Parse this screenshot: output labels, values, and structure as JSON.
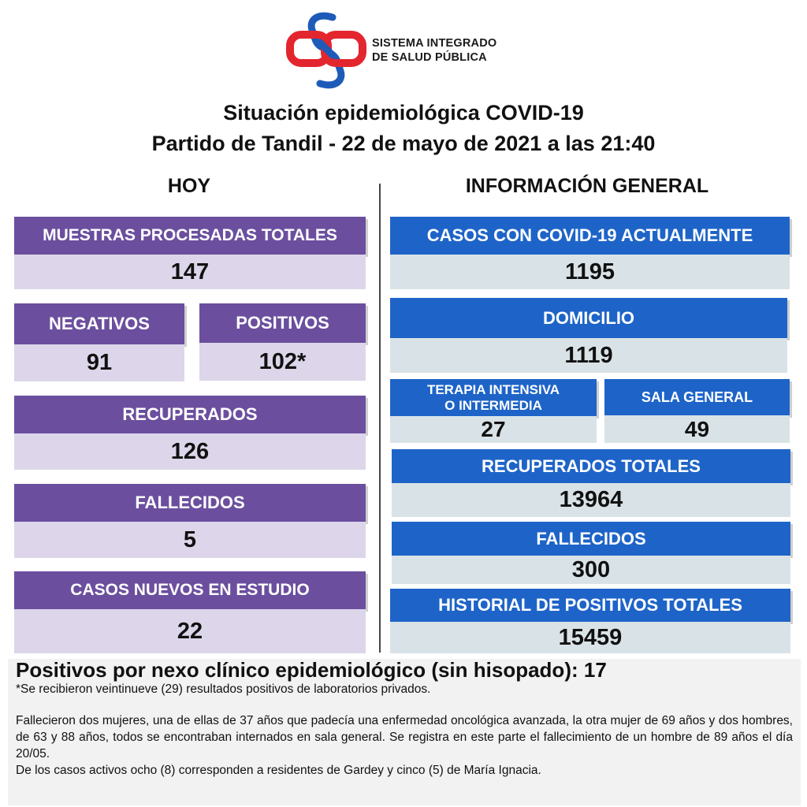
{
  "org": {
    "line1": "SISTEMA INTEGRADO",
    "line2": "DE SALUD PÚBLICA"
  },
  "title": {
    "line1": "Situación epidemiológica COVID-19",
    "line2": "Partido de Tandil - 22 de mayo de 2021 a las 21:40"
  },
  "hoy": {
    "heading": "HOY",
    "muestras": {
      "label": "MUESTRAS PROCESADAS TOTALES",
      "value": "147"
    },
    "negativos": {
      "label": "NEGATIVOS",
      "value": "91"
    },
    "positivos": {
      "label": "POSITIVOS",
      "value": "102*"
    },
    "recuperados": {
      "label": "RECUPERADOS",
      "value": "126"
    },
    "fallecidos": {
      "label": "FALLECIDOS",
      "value": "5"
    },
    "casos_nuevos": {
      "label": "CASOS NUEVOS EN ESTUDIO",
      "value": "22"
    }
  },
  "general": {
    "heading": "INFORMACIÓN GENERAL",
    "casos_actuales": {
      "label": "CASOS CON COVID-19 ACTUALMENTE",
      "value": "1195"
    },
    "domicilio": {
      "label": "DOMICILIO",
      "value": "1119"
    },
    "terapia": {
      "label_line1": "TERAPIA INTENSIVA",
      "label_line2": "O INTERMEDIA",
      "value": "27"
    },
    "sala_general": {
      "label": "SALA GENERAL",
      "value": "49"
    },
    "recuperados_totales": {
      "label": "RECUPERADOS TOTALES",
      "value": "13964"
    },
    "fallecidos": {
      "label": "FALLECIDOS",
      "value": "300"
    },
    "historial": {
      "label": "HISTORIAL DE POSITIVOS TOTALES",
      "value": "15459"
    }
  },
  "footer": {
    "headline": "Positivos por nexo clínico epidemiológico (sin hisopado): 17",
    "note": "*Se recibieron veintinueve (29) resultados positivos de laboratorios privados.",
    "paragraph1": "Fallecieron dos mujeres, una de ellas de 37 años que padecía una enfermedad oncológica avanzada, la otra mujer de 69 años y dos hombres, de 63 y 88 años, todos se encontraban internados en sala general. Se registra en este parte el fallecimiento de un hombre de 89 años el día 20/05.",
    "paragraph2": "De los casos activos ocho (8) corresponden a residentes de Gardey y cinco (5) de María Ignacia."
  },
  "colors": {
    "purple": "#6b4f9e",
    "purple_light": "#ddd6ea",
    "blue": "#1e64c8",
    "blue_light": "#d9e3e7",
    "logo_red": "#e3262e",
    "logo_blue": "#1e5bb8"
  },
  "icons": {
    "logo": "sisp-logo-icon"
  }
}
